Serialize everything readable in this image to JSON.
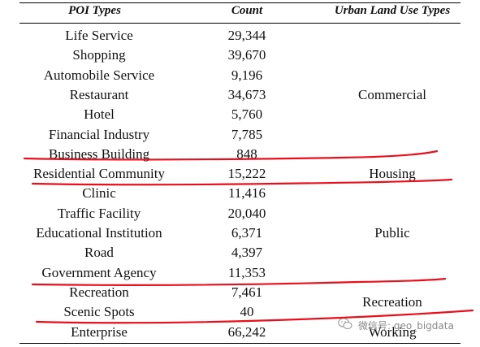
{
  "table": {
    "headers": [
      "POI Types",
      "Count",
      "Urban Land Use Types"
    ],
    "rows": [
      {
        "poi": "Life Service",
        "count": "29,344"
      },
      {
        "poi": "Shopping",
        "count": "39,670"
      },
      {
        "poi": "Automobile Service",
        "count": "9,196"
      },
      {
        "poi": "Restaurant",
        "count": "34,673"
      },
      {
        "poi": "Hotel",
        "count": "5,760"
      },
      {
        "poi": "Financial Industry",
        "count": "7,785"
      },
      {
        "poi": "Business Building",
        "count": "848"
      },
      {
        "poi": "Residential Community",
        "count": "15,222"
      },
      {
        "poi": "Clinic",
        "count": "11,416"
      },
      {
        "poi": "Traffic Facility",
        "count": "20,040"
      },
      {
        "poi": "Educational Institution",
        "count": "6,371"
      },
      {
        "poi": "Road",
        "count": "4,397"
      },
      {
        "poi": "Government Agency",
        "count": "11,353"
      },
      {
        "poi": "Recreation",
        "count": "7,461"
      },
      {
        "poi": "Scenic Spots",
        "count": "40"
      },
      {
        "poi": "Enterprise",
        "count": "66,242"
      }
    ],
    "categories": [
      {
        "label": "Commercial",
        "first_row": 0,
        "last_row": 6
      },
      {
        "label": "Housing",
        "first_row": 7,
        "last_row": 7
      },
      {
        "label": "Public",
        "first_row": 8,
        "last_row": 12
      },
      {
        "label": "Recreation",
        "first_row": 13,
        "last_row": 14
      },
      {
        "label": "Working",
        "first_row": 15,
        "last_row": 15
      }
    ]
  },
  "annotation_color": "#e8101c",
  "watermark": {
    "text": "微信号: geo_bigdata",
    "icon": "wechat-icon"
  }
}
